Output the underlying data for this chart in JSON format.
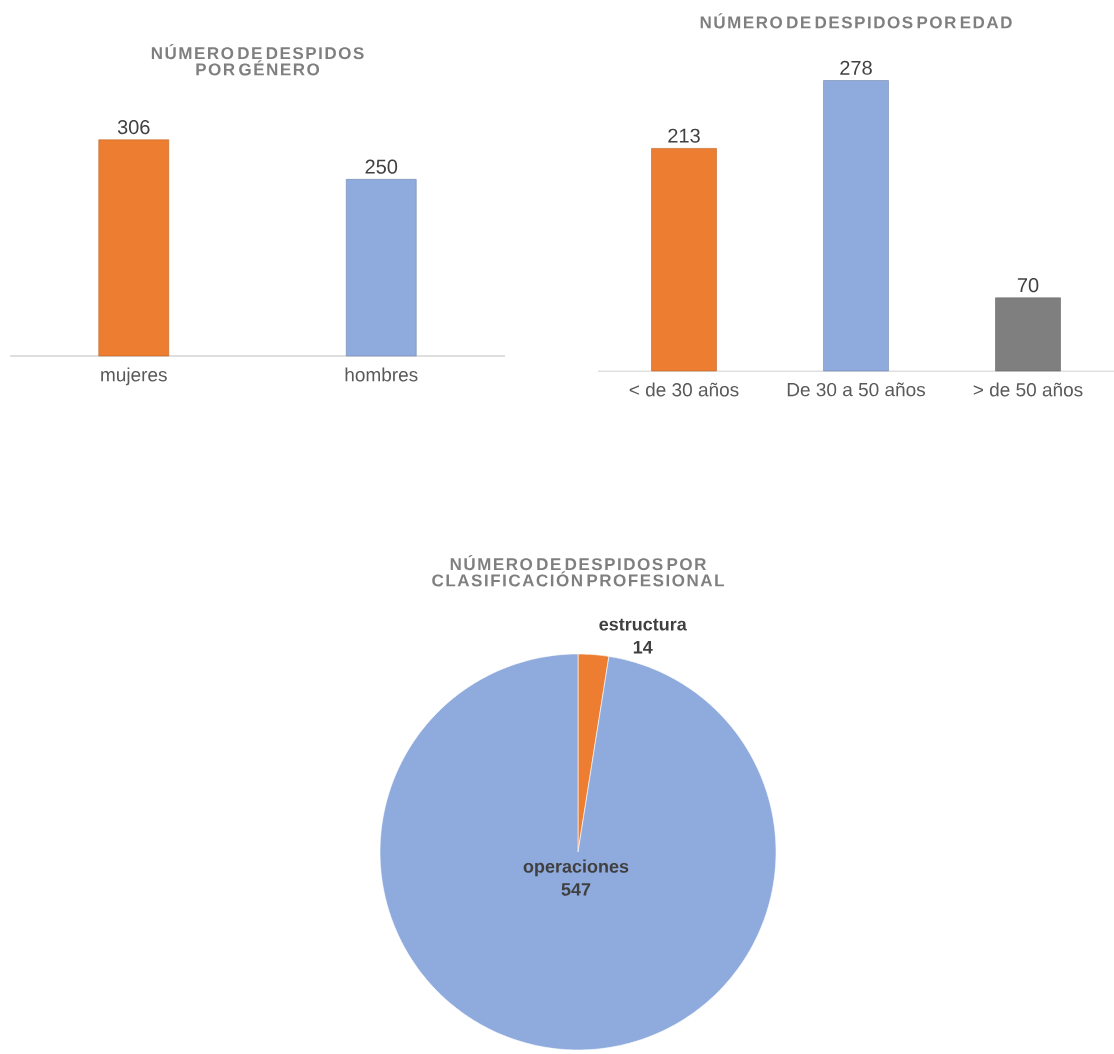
{
  "chart_data": [
    {
      "type": "bar",
      "title": "NÚMERO DE DESPIDOS POR GÉNERO",
      "categories": [
        "mujeres",
        "hombres"
      ],
      "values": [
        306,
        250
      ],
      "colors": [
        "#ed7d31",
        "#8faadc"
      ],
      "data_labels": true,
      "tick_labels": "x"
    },
    {
      "type": "bar",
      "title": "NÚMERO DE DESPIDOS POR EDAD",
      "categories": [
        "< de 30 años",
        "De 30 a 50 años",
        "> de 50 años"
      ],
      "values": [
        213,
        278,
        70
      ],
      "colors": [
        "#ed7d31",
        "#8faadc",
        "#7f7f7f"
      ],
      "data_labels": true,
      "tick_labels": "x"
    },
    {
      "type": "pie",
      "title": "NÚMERO DE DESPIDOS POR CLASIFICACIÓN PROFESIONAL",
      "categories": [
        "estructura",
        "operaciones"
      ],
      "values": [
        14,
        547
      ],
      "colors": [
        "#ed7d31",
        "#8faadc"
      ],
      "value_labels": [
        "14",
        "547"
      ],
      "data_labels": true
    }
  ]
}
